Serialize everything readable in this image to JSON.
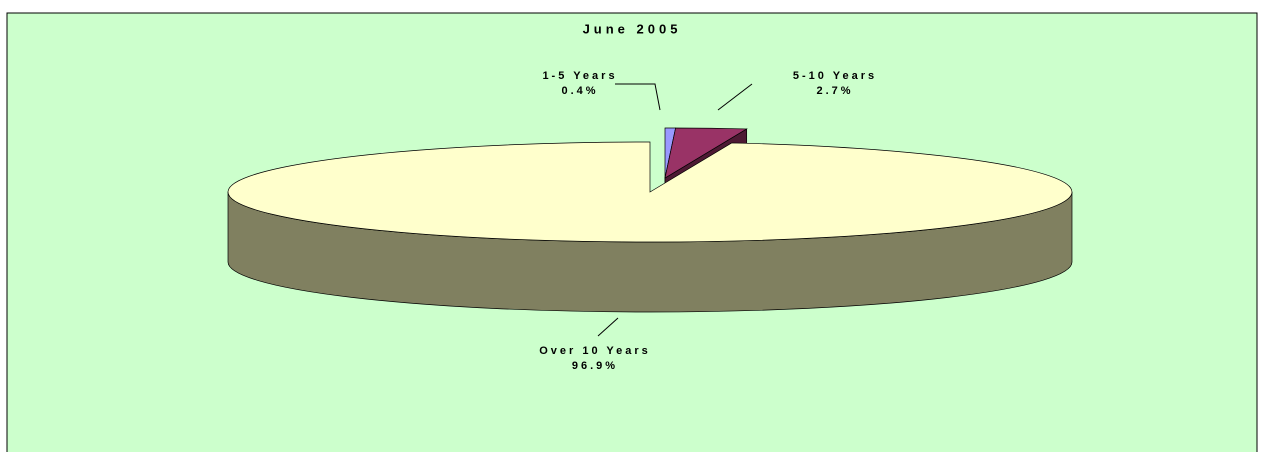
{
  "chart_data": {
    "type": "pie3d",
    "title": "June 2005",
    "categories": [
      "1-5 Years",
      "5-10 Years",
      "Over 10 Years"
    ],
    "values": [
      0.4,
      2.7,
      96.9
    ],
    "value_labels": [
      "0.4%",
      "2.7%",
      "96.9%"
    ],
    "colors": [
      "#9999ff",
      "#993366",
      "#ffffcc"
    ]
  }
}
